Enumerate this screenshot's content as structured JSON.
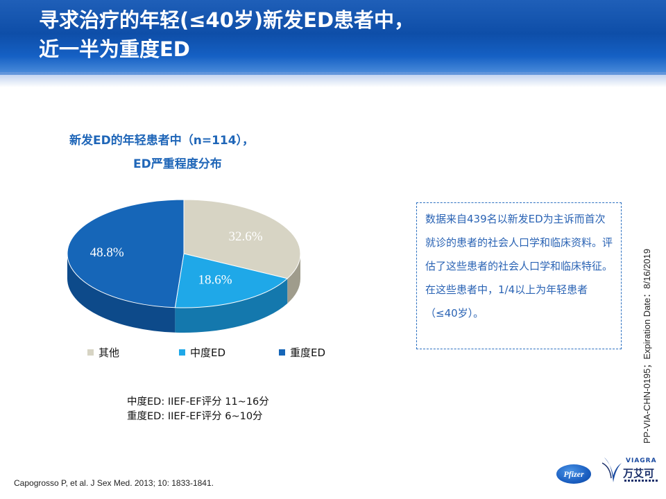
{
  "slide": {
    "title_line1": "寻求治疗的年轻(≤40岁)新发ED患者中，",
    "title_line2": "近一半为重度ED",
    "side_code": "PP-VIA-CHN-0195；Expiration Date：8/16/2019",
    "citation": "Capogrosso P, et al. J Sex Med. 2013; 10: 1833-1841."
  },
  "chart_data": {
    "type": "pie",
    "title": "新发ED的年轻患者中（n=114），",
    "subtitle": "ED严重程度分布",
    "slices": [
      {
        "name": "其他",
        "value": 32.6,
        "label": "32.6%",
        "color": "#d7d4c4",
        "side_color": "#9f9c8c"
      },
      {
        "name": "中度ED",
        "value": 18.6,
        "label": "18.6%",
        "color": "#1fa8e8",
        "side_color": "#1478ad"
      },
      {
        "name": "重度ED",
        "value": 48.8,
        "label": "48.8%",
        "color": "#1666b8",
        "side_color": "#0d4a8a"
      }
    ],
    "legend_position": "bottom"
  },
  "definitions": [
    "中度ED:  IIEF-EF评分 11~16分",
    "重度ED:  IIEF-EF评分 6~10分"
  ],
  "note": "数据来自439名以新发ED为主诉而首次就诊的患者的社会人口学和临床资料。评估了这些患者的社会人口学和临床特征。在这些患者中，1/4以上为年轻患者（≤40岁）。",
  "logos": {
    "pfizer": "Pfizer",
    "viagra_en": "VIAGRA",
    "viagra_cn": "万艾可"
  },
  "colors": {
    "accent": "#1f66b8",
    "header": "#0e4ea8"
  }
}
